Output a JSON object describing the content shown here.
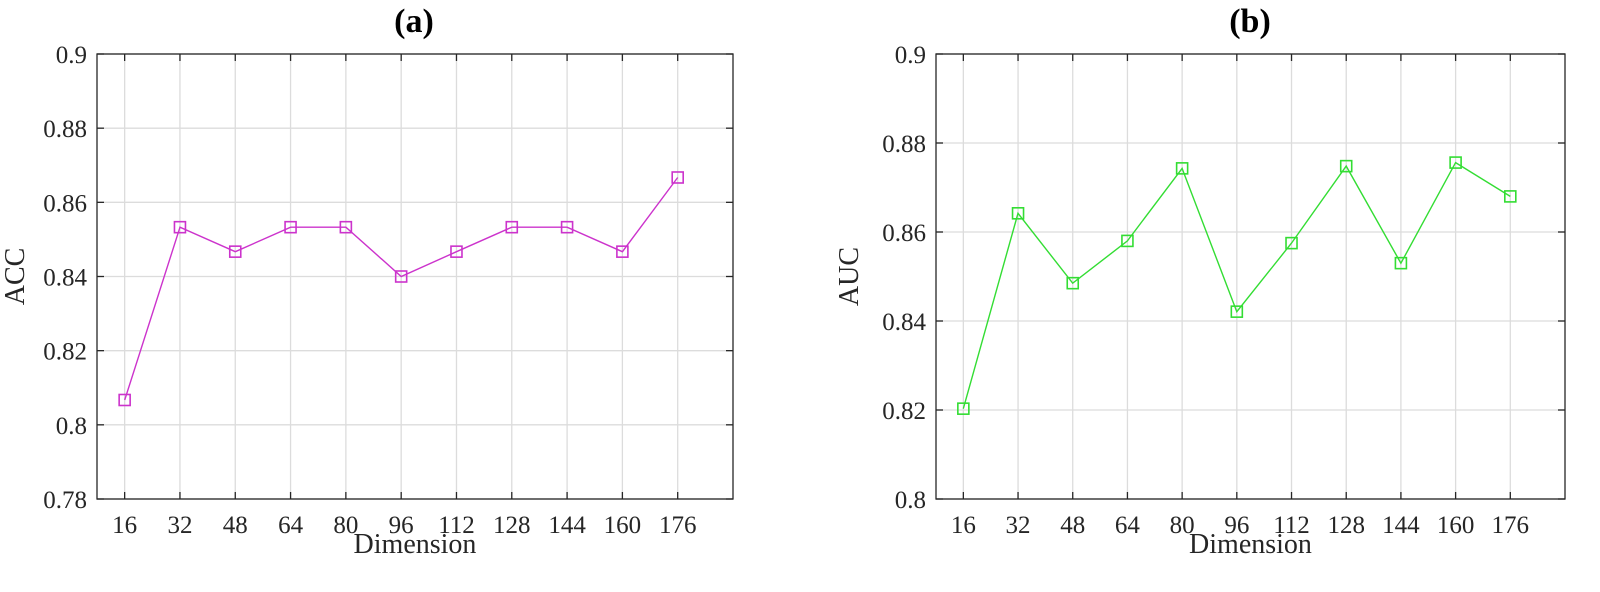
{
  "chart_data": [
    {
      "type": "line",
      "title": "(a)",
      "xlabel": "Dimension",
      "ylabel": "ACC",
      "categories": [
        "16",
        "32",
        "48",
        "64",
        "80",
        "96",
        "112",
        "128",
        "144",
        "160",
        "176"
      ],
      "x": [
        16,
        32,
        48,
        64,
        80,
        96,
        112,
        128,
        144,
        160,
        176
      ],
      "y_ticks": [
        "0.78",
        "0.8",
        "0.82",
        "0.84",
        "0.86",
        "0.88",
        "0.9"
      ],
      "ylim": [
        0.78,
        0.9
      ],
      "grid": true,
      "marker": "square",
      "color": "#cc33cc",
      "series": [
        {
          "values": [
            0.8067,
            0.8533,
            0.8467,
            0.8533,
            0.8533,
            0.84,
            0.8467,
            0.8533,
            0.8533,
            0.8467,
            0.8667
          ]
        }
      ]
    },
    {
      "type": "line",
      "title": "(b)",
      "xlabel": "Dimension",
      "ylabel": "AUC",
      "categories": [
        "16",
        "32",
        "48",
        "64",
        "80",
        "96",
        "112",
        "128",
        "144",
        "160",
        "176"
      ],
      "x": [
        16,
        32,
        48,
        64,
        80,
        96,
        112,
        128,
        144,
        160,
        176
      ],
      "y_ticks": [
        "0.8",
        "0.82",
        "0.84",
        "0.86",
        "0.88",
        "0.9"
      ],
      "ylim": [
        0.8,
        0.9
      ],
      "grid": true,
      "marker": "square",
      "color": "#33dd33",
      "series": [
        {
          "values": [
            0.8203,
            0.8642,
            0.8485,
            0.858,
            0.8743,
            0.8421,
            0.8575,
            0.8748,
            0.853,
            0.8756,
            0.868
          ]
        }
      ]
    }
  ]
}
